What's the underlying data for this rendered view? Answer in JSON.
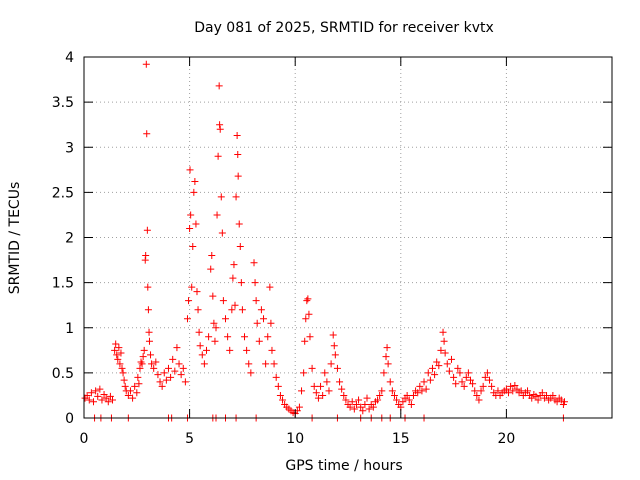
{
  "chart_data": {
    "type": "scatter",
    "title": "Day 081 of 2025, SRMTID for receiver kvtx",
    "xlabel": "GPS time / hours",
    "ylabel": "SRMTID / TECUs",
    "xlim": [
      0,
      25
    ],
    "ylim": [
      0,
      4
    ],
    "xticks": [
      0,
      5,
      10,
      15,
      20
    ],
    "yticks": [
      0,
      0.5,
      1,
      1.5,
      2,
      2.5,
      3,
      3.5,
      4
    ],
    "ytick_labels": [
      "0",
      "0.5",
      "1",
      "1.5",
      "2",
      "2.5",
      "3",
      "3.5",
      "4"
    ],
    "grid": true,
    "marker": "+",
    "color": "#ff0000",
    "series": [
      {
        "name": "SRMTID",
        "points": [
          [
            0.05,
            0.22
          ],
          [
            0.15,
            0.25
          ],
          [
            0.25,
            0.2
          ],
          [
            0.35,
            0.28
          ],
          [
            0.45,
            0.18
          ],
          [
            0.55,
            0.3
          ],
          [
            0.65,
            0.24
          ],
          [
            0.75,
            0.32
          ],
          [
            0.85,
            0.2
          ],
          [
            0.95,
            0.26
          ],
          [
            1.05,
            0.22
          ],
          [
            1.15,
            0.18
          ],
          [
            1.25,
            0.24
          ],
          [
            1.35,
            0.2
          ],
          [
            0.5,
            0.0
          ],
          [
            0.8,
            0.0
          ],
          [
            1.3,
            0.0
          ],
          [
            2.1,
            0.0
          ],
          [
            4.0,
            0.0
          ],
          [
            4.15,
            0.0
          ],
          [
            4.9,
            0.0
          ],
          [
            6.1,
            0.0
          ],
          [
            6.25,
            0.0
          ],
          [
            6.7,
            0.0
          ],
          [
            7.2,
            0.0
          ],
          [
            8.15,
            0.0
          ],
          [
            10.8,
            0.0
          ],
          [
            12.0,
            0.0
          ],
          [
            13.1,
            0.0
          ],
          [
            13.6,
            0.0
          ],
          [
            14.1,
            0.0
          ],
          [
            14.5,
            0.0
          ],
          [
            15.2,
            0.0
          ],
          [
            16.1,
            0.0
          ],
          [
            22.7,
            0.0
          ],
          [
            1.45,
            0.75
          ],
          [
            1.5,
            0.82
          ],
          [
            1.55,
            0.7
          ],
          [
            1.6,
            0.65
          ],
          [
            1.65,
            0.78
          ],
          [
            1.7,
            0.6
          ],
          [
            1.75,
            0.72
          ],
          [
            1.8,
            0.55
          ],
          [
            1.85,
            0.5
          ],
          [
            1.9,
            0.42
          ],
          [
            1.95,
            0.35
          ],
          [
            2.0,
            0.3
          ],
          [
            2.1,
            0.25
          ],
          [
            2.2,
            0.3
          ],
          [
            2.3,
            0.22
          ],
          [
            2.4,
            0.35
          ],
          [
            2.5,
            0.28
          ],
          [
            2.55,
            0.45
          ],
          [
            2.6,
            0.38
          ],
          [
            2.65,
            0.55
          ],
          [
            2.7,
            0.62
          ],
          [
            2.75,
            0.6
          ],
          [
            2.8,
            0.68
          ],
          [
            2.85,
            0.75
          ],
          [
            2.9,
            1.75
          ],
          [
            2.92,
            1.8
          ],
          [
            2.95,
            3.92
          ],
          [
            2.97,
            3.15
          ],
          [
            3.0,
            2.08
          ],
          [
            3.02,
            1.45
          ],
          [
            3.05,
            1.2
          ],
          [
            3.08,
            0.95
          ],
          [
            3.1,
            0.85
          ],
          [
            3.15,
            0.7
          ],
          [
            3.2,
            0.6
          ],
          [
            3.3,
            0.55
          ],
          [
            3.4,
            0.62
          ],
          [
            3.5,
            0.48
          ],
          [
            3.6,
            0.4
          ],
          [
            3.7,
            0.35
          ],
          [
            3.8,
            0.5
          ],
          [
            3.9,
            0.42
          ],
          [
            4.0,
            0.55
          ],
          [
            4.1,
            0.45
          ],
          [
            4.2,
            0.65
          ],
          [
            4.3,
            0.52
          ],
          [
            4.4,
            0.78
          ],
          [
            4.5,
            0.6
          ],
          [
            4.6,
            0.48
          ],
          [
            4.7,
            0.55
          ],
          [
            4.8,
            0.4
          ],
          [
            4.9,
            1.1
          ],
          [
            4.95,
            1.3
          ],
          [
            5.0,
            2.1
          ],
          [
            5.02,
            2.75
          ],
          [
            5.05,
            2.25
          ],
          [
            5.1,
            1.45
          ],
          [
            5.15,
            1.9
          ],
          [
            5.2,
            2.5
          ],
          [
            5.25,
            2.62
          ],
          [
            5.3,
            2.15
          ],
          [
            5.35,
            1.4
          ],
          [
            5.4,
            1.2
          ],
          [
            5.45,
            0.95
          ],
          [
            5.5,
            0.8
          ],
          [
            5.6,
            0.7
          ],
          [
            5.7,
            0.6
          ],
          [
            5.8,
            0.75
          ],
          [
            5.9,
            0.9
          ],
          [
            6.0,
            1.65
          ],
          [
            6.05,
            1.8
          ],
          [
            6.1,
            1.35
          ],
          [
            6.15,
            1.05
          ],
          [
            6.2,
            0.85
          ],
          [
            6.25,
            1.0
          ],
          [
            6.3,
            2.25
          ],
          [
            6.35,
            2.9
          ],
          [
            6.4,
            3.68
          ],
          [
            6.42,
            3.25
          ],
          [
            6.45,
            3.2
          ],
          [
            6.5,
            2.45
          ],
          [
            6.55,
            2.05
          ],
          [
            6.6,
            1.3
          ],
          [
            6.7,
            1.1
          ],
          [
            6.8,
            0.9
          ],
          [
            6.9,
            0.75
          ],
          [
            7.0,
            1.2
          ],
          [
            7.05,
            1.55
          ],
          [
            7.1,
            1.7
          ],
          [
            7.15,
            1.25
          ],
          [
            7.2,
            2.45
          ],
          [
            7.25,
            3.13
          ],
          [
            7.28,
            2.92
          ],
          [
            7.3,
            2.68
          ],
          [
            7.35,
            2.15
          ],
          [
            7.4,
            1.9
          ],
          [
            7.45,
            1.5
          ],
          [
            7.5,
            1.2
          ],
          [
            7.6,
            0.9
          ],
          [
            7.7,
            0.75
          ],
          [
            7.8,
            0.6
          ],
          [
            7.9,
            0.5
          ],
          [
            8.05,
            1.72
          ],
          [
            8.1,
            1.5
          ],
          [
            8.15,
            1.3
          ],
          [
            8.2,
            1.05
          ],
          [
            8.3,
            0.85
          ],
          [
            8.4,
            1.2
          ],
          [
            8.5,
            1.1
          ],
          [
            8.6,
            0.6
          ],
          [
            8.7,
            0.9
          ],
          [
            8.8,
            1.45
          ],
          [
            8.85,
            1.05
          ],
          [
            8.9,
            0.75
          ],
          [
            9.0,
            0.6
          ],
          [
            9.1,
            0.45
          ],
          [
            9.2,
            0.35
          ],
          [
            9.3,
            0.25
          ],
          [
            9.4,
            0.2
          ],
          [
            9.5,
            0.15
          ],
          [
            9.6,
            0.12
          ],
          [
            9.7,
            0.1
          ],
          [
            9.8,
            0.08
          ],
          [
            9.9,
            0.06
          ],
          [
            10.0,
            0.05
          ],
          [
            10.1,
            0.08
          ],
          [
            10.2,
            0.12
          ],
          [
            10.3,
            0.3
          ],
          [
            10.4,
            0.5
          ],
          [
            10.45,
            0.85
          ],
          [
            10.5,
            1.1
          ],
          [
            10.55,
            1.3
          ],
          [
            10.6,
            1.32
          ],
          [
            10.65,
            1.15
          ],
          [
            10.7,
            0.9
          ],
          [
            10.8,
            0.55
          ],
          [
            10.9,
            0.35
          ],
          [
            11.0,
            0.28
          ],
          [
            11.1,
            0.22
          ],
          [
            11.2,
            0.35
          ],
          [
            11.3,
            0.25
          ],
          [
            11.4,
            0.5
          ],
          [
            11.5,
            0.4
          ],
          [
            11.6,
            0.3
          ],
          [
            11.7,
            0.6
          ],
          [
            11.8,
            0.92
          ],
          [
            11.85,
            0.8
          ],
          [
            11.9,
            0.7
          ],
          [
            12.0,
            0.55
          ],
          [
            12.1,
            0.4
          ],
          [
            12.2,
            0.32
          ],
          [
            12.3,
            0.25
          ],
          [
            12.4,
            0.2
          ],
          [
            12.5,
            0.15
          ],
          [
            12.6,
            0.12
          ],
          [
            12.7,
            0.18
          ],
          [
            12.8,
            0.1
          ],
          [
            12.9,
            0.15
          ],
          [
            13.0,
            0.2
          ],
          [
            13.1,
            0.12
          ],
          [
            13.2,
            0.08
          ],
          [
            13.3,
            0.15
          ],
          [
            13.4,
            0.22
          ],
          [
            13.5,
            0.1
          ],
          [
            13.6,
            0.15
          ],
          [
            13.7,
            0.12
          ],
          [
            13.8,
            0.18
          ],
          [
            13.9,
            0.2
          ],
          [
            14.0,
            0.25
          ],
          [
            14.1,
            0.3
          ],
          [
            14.2,
            0.5
          ],
          [
            14.3,
            0.68
          ],
          [
            14.35,
            0.78
          ],
          [
            14.4,
            0.6
          ],
          [
            14.5,
            0.4
          ],
          [
            14.6,
            0.3
          ],
          [
            14.7,
            0.25
          ],
          [
            14.8,
            0.2
          ],
          [
            14.9,
            0.15
          ],
          [
            15.0,
            0.12
          ],
          [
            15.1,
            0.18
          ],
          [
            15.2,
            0.22
          ],
          [
            15.3,
            0.25
          ],
          [
            15.4,
            0.2
          ],
          [
            15.5,
            0.15
          ],
          [
            15.6,
            0.25
          ],
          [
            15.7,
            0.3
          ],
          [
            15.8,
            0.28
          ],
          [
            15.9,
            0.35
          ],
          [
            16.0,
            0.3
          ],
          [
            16.1,
            0.4
          ],
          [
            16.2,
            0.32
          ],
          [
            16.3,
            0.5
          ],
          [
            16.4,
            0.42
          ],
          [
            16.5,
            0.55
          ],
          [
            16.6,
            0.48
          ],
          [
            16.7,
            0.62
          ],
          [
            16.8,
            0.58
          ],
          [
            16.9,
            0.75
          ],
          [
            17.0,
            0.95
          ],
          [
            17.05,
            0.85
          ],
          [
            17.1,
            0.72
          ],
          [
            17.2,
            0.6
          ],
          [
            17.3,
            0.52
          ],
          [
            17.4,
            0.65
          ],
          [
            17.5,
            0.45
          ],
          [
            17.6,
            0.38
          ],
          [
            17.7,
            0.55
          ],
          [
            17.8,
            0.5
          ],
          [
            17.9,
            0.4
          ],
          [
            18.0,
            0.35
          ],
          [
            18.1,
            0.45
          ],
          [
            18.2,
            0.5
          ],
          [
            18.3,
            0.42
          ],
          [
            18.4,
            0.38
          ],
          [
            18.5,
            0.3
          ],
          [
            18.6,
            0.25
          ],
          [
            18.7,
            0.2
          ],
          [
            18.8,
            0.3
          ],
          [
            18.9,
            0.35
          ],
          [
            19.0,
            0.45
          ],
          [
            19.1,
            0.5
          ],
          [
            19.2,
            0.42
          ],
          [
            19.3,
            0.35
          ],
          [
            19.4,
            0.28
          ],
          [
            19.5,
            0.25
          ],
          [
            19.6,
            0.3
          ],
          [
            19.7,
            0.25
          ],
          [
            19.8,
            0.28
          ],
          [
            19.9,
            0.3
          ],
          [
            20.0,
            0.32
          ],
          [
            20.1,
            0.28
          ],
          [
            20.2,
            0.35
          ],
          [
            20.3,
            0.3
          ],
          [
            20.4,
            0.36
          ],
          [
            20.5,
            0.32
          ],
          [
            20.6,
            0.28
          ],
          [
            20.7,
            0.3
          ],
          [
            20.8,
            0.25
          ],
          [
            20.9,
            0.28
          ],
          [
            21.0,
            0.3
          ],
          [
            21.1,
            0.25
          ],
          [
            21.2,
            0.22
          ],
          [
            21.3,
            0.26
          ],
          [
            21.4,
            0.24
          ],
          [
            21.5,
            0.2
          ],
          [
            21.6,
            0.25
          ],
          [
            21.7,
            0.28
          ],
          [
            21.8,
            0.22
          ],
          [
            21.9,
            0.25
          ],
          [
            22.0,
            0.2
          ],
          [
            22.1,
            0.22
          ],
          [
            22.2,
            0.25
          ],
          [
            22.3,
            0.2
          ],
          [
            22.4,
            0.18
          ],
          [
            22.5,
            0.22
          ],
          [
            22.6,
            0.2
          ],
          [
            22.7,
            0.15
          ],
          [
            22.75,
            0.18
          ]
        ]
      }
    ]
  }
}
